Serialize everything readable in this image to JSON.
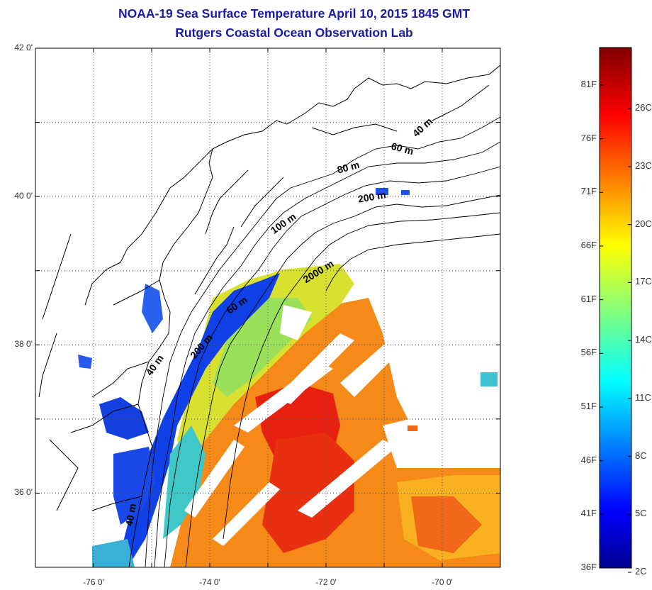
{
  "title": {
    "line1": "NOAA-19 Sea Surface Temperature April 10, 2015 1845 GMT",
    "line2": "Rutgers Coastal Ocean Observation Lab"
  },
  "map": {
    "lat_labels": [
      "42 0'",
      "40 0'",
      "38 0'",
      "36 0'"
    ],
    "lon_labels": [
      "-76 0'",
      "-74 0'",
      "-72 0'",
      "-70 0'"
    ],
    "lat_range": [
      35.0,
      42.0
    ],
    "lon_range": [
      -77.0,
      -69.0
    ],
    "grid": "dotted",
    "contour_labels": [
      {
        "text": "40 m",
        "lat": 40.9,
        "lon": -70.3,
        "angle": -42
      },
      {
        "text": "60 m",
        "lat": 40.6,
        "lon": -70.7,
        "angle": 15
      },
      {
        "text": "80 m",
        "lat": 40.35,
        "lon": -71.6,
        "angle": -15
      },
      {
        "text": "200 m",
        "lat": 39.95,
        "lon": -71.2,
        "angle": -10
      },
      {
        "text": "100 m",
        "lat": 39.6,
        "lon": -72.7,
        "angle": -35
      },
      {
        "text": "2000 m",
        "lat": 38.95,
        "lon": -72.1,
        "angle": -32
      },
      {
        "text": "60 m",
        "lat": 38.5,
        "lon": -73.5,
        "angle": -35
      },
      {
        "text": "200 m",
        "lat": 37.95,
        "lon": -74.1,
        "angle": -50
      },
      {
        "text": "40 m",
        "lat": 37.7,
        "lon": -74.9,
        "angle": -55
      },
      {
        "text": "40 m",
        "lat": 35.7,
        "lon": -75.3,
        "angle": -80
      }
    ]
  },
  "colorbar": {
    "fahrenheit_labels": [
      "81F",
      "76F",
      "71F",
      "66F",
      "61F",
      "56F",
      "51F",
      "46F",
      "41F",
      "36F"
    ],
    "celsius_labels": [
      "26C",
      "23C",
      "20C",
      "17C",
      "14C",
      "11C",
      "8C",
      "5C",
      "2C"
    ],
    "colormap": "jet",
    "colors": [
      "#00008f",
      "#0000ff",
      "#0080ff",
      "#00ffff",
      "#80ff80",
      "#ffff00",
      "#ff8000",
      "#ff0000",
      "#800000"
    ]
  }
}
